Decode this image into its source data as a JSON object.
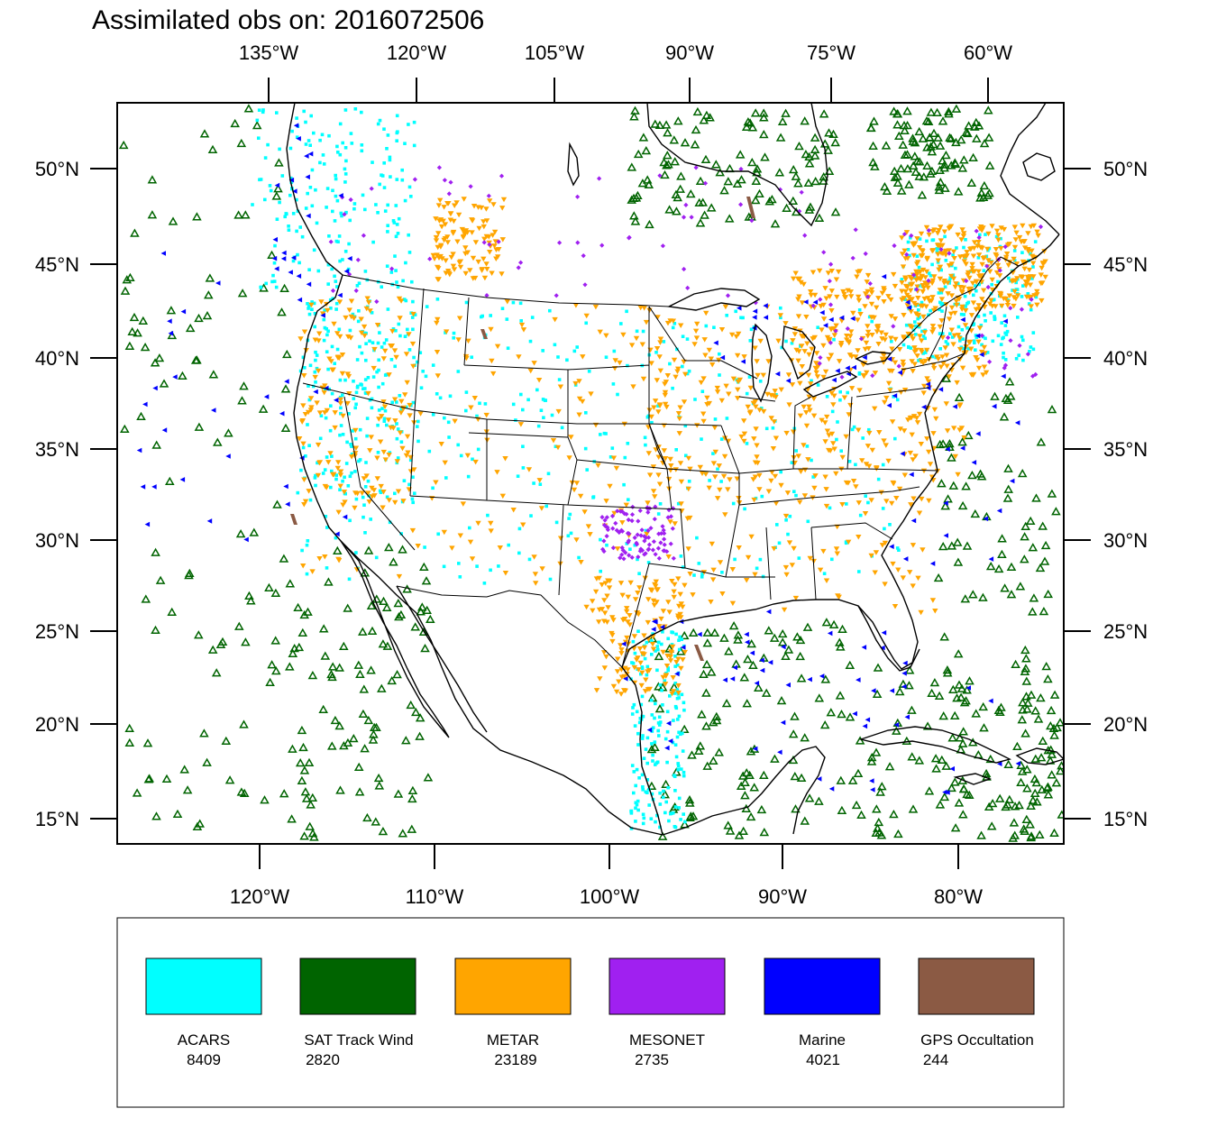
{
  "title": "Assimilated obs on: 2016072506",
  "top_axis_labels": [
    "135°W",
    "120°W",
    "105°W",
    "90°W",
    "75°W",
    "60°W"
  ],
  "bottom_axis_labels": [
    "120°W",
    "110°W",
    "100°W",
    "90°W",
    "80°W"
  ],
  "lat_labels": [
    "50°N",
    "45°N",
    "40°N",
    "35°N",
    "30°N",
    "25°N",
    "20°N",
    "15°N"
  ],
  "legend": [
    {
      "label": "ACARS",
      "count": "8409",
      "color": "#00ffff"
    },
    {
      "label": "SAT Track Wind",
      "count": "2820",
      "color": "#006400"
    },
    {
      "label": "METAR",
      "count": "23189",
      "color": "#ffa500"
    },
    {
      "label": "MESONET",
      "count": "2735",
      "color": "#a020f0"
    },
    {
      "label": "Marine",
      "count": "4021",
      "color": "#0000ff"
    },
    {
      "label": "GPS Occultation",
      "count": "244",
      "color": "#8b5a44"
    }
  ],
  "colors": {
    "acars": "#00ffff",
    "sat_track_wind": "#006400",
    "metar": "#ffa500",
    "mesonet": "#a020f0",
    "marine": "#0000ff",
    "gps": "#8b5a44"
  }
}
